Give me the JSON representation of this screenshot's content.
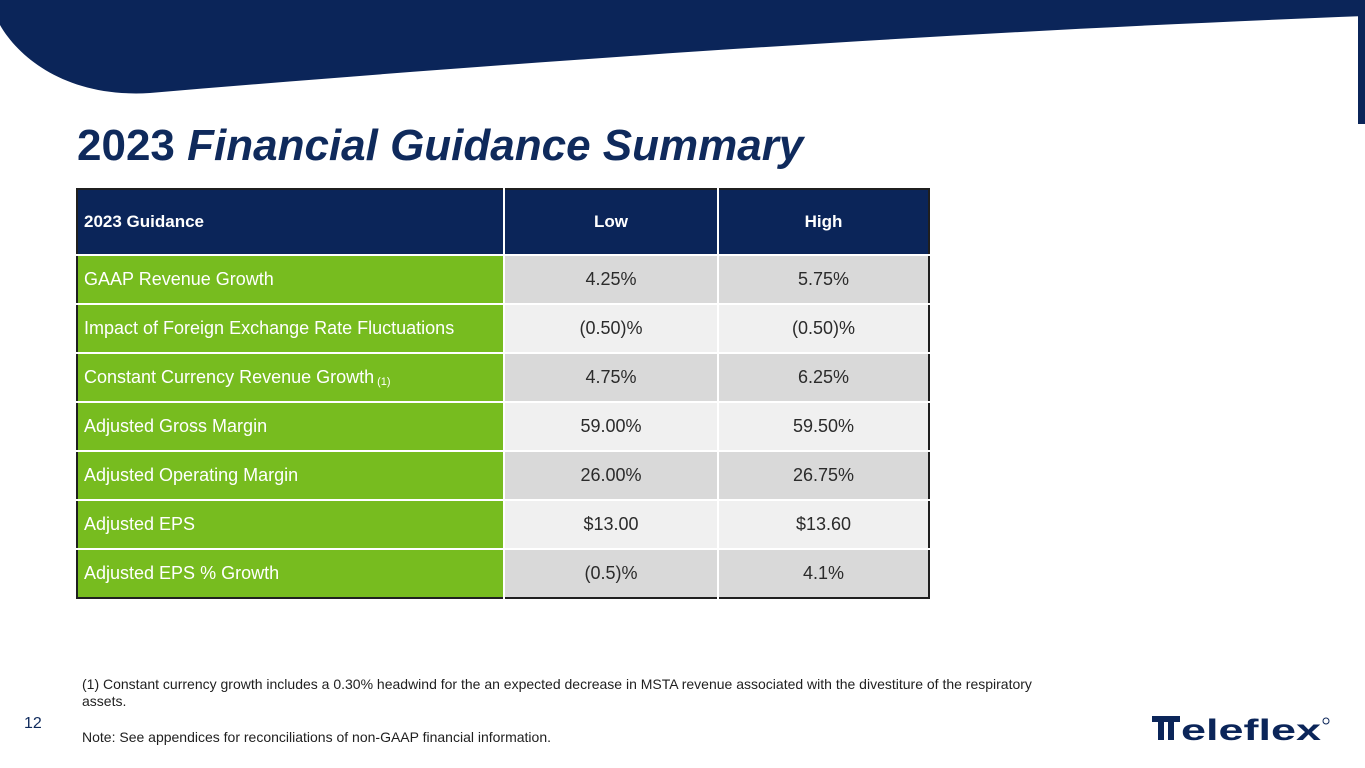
{
  "slide": {
    "title_year": "2023",
    "title_rest": "Financial Guidance Summary",
    "page_number": "12",
    "colors": {
      "navy": "#0b2559",
      "green": "#77bc1f",
      "gray": "#d9d9d9",
      "light_gray": "#f0f0f0"
    }
  },
  "table": {
    "headers": {
      "label": "2023 Guidance",
      "low": "Low",
      "high": "High"
    },
    "rows": [
      {
        "label": "GAAP Revenue Growth",
        "sup": "",
        "low": "4.25%",
        "high": "5.75%"
      },
      {
        "label": "Impact of Foreign Exchange Rate Fluctuations",
        "sup": "",
        "low": "(0.50)%",
        "high": "(0.50)%"
      },
      {
        "label": "Constant Currency Revenue Growth",
        "sup": "(1)",
        "low": "4.75%",
        "high": "6.25%"
      },
      {
        "label": "Adjusted Gross Margin",
        "sup": "",
        "low": "59.00%",
        "high": "59.50%"
      },
      {
        "label": "Adjusted Operating Margin",
        "sup": "",
        "low": "26.00%",
        "high": "26.75%"
      },
      {
        "label": "Adjusted EPS",
        "sup": "",
        "low": "$13.00",
        "high": "$13.60"
      },
      {
        "label": "Adjusted EPS % Growth",
        "sup": "",
        "low": "(0.5)%",
        "high": "4.1%"
      }
    ]
  },
  "footnotes": {
    "note1": "(1) Constant currency growth includes a 0.30% headwind for the an expected decrease in MSTA revenue associated with the divestiture of the respiratory assets.",
    "note2": "Note: See appendices for reconciliations of non-GAAP financial information."
  },
  "logo": {
    "text": "Teleflex",
    "icon": "teleflex-logo-icon"
  }
}
